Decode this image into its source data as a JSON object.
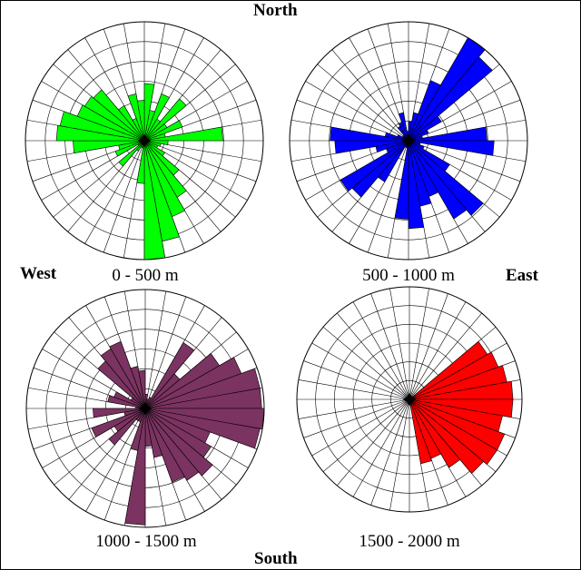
{
  "compass": {
    "north": "North",
    "south": "South",
    "west": "West",
    "east": "East"
  },
  "chart_data": [
    {
      "type": "polar-bar",
      "caption": "0 - 500 m",
      "color": "#00ff00",
      "sectors": 36,
      "rings": 6,
      "values": [
        0.48,
        0.26,
        0.42,
        0.21,
        0.46,
        0.22,
        0.34,
        0.18,
        0.66,
        0.2,
        0.14,
        0.12,
        0.2,
        0.38,
        0.55,
        0.68,
        0.86,
        1.0,
        0.36,
        0.06,
        0.06,
        0.1,
        0.28,
        0.06,
        0.26,
        0.22,
        0.6,
        0.74,
        0.72,
        0.6,
        0.58,
        0.56,
        0.34,
        0.2,
        0.4,
        0.34
      ]
    },
    {
      "type": "polar-bar",
      "caption": "500 - 1000 m",
      "color": "#0000ff",
      "sectors": 36,
      "rings": 6,
      "values": [
        0.16,
        0.24,
        0.54,
        1.0,
        0.92,
        0.32,
        0.18,
        0.12,
        0.66,
        0.72,
        0.1,
        0.14,
        0.4,
        0.82,
        0.76,
        0.5,
        0.56,
        0.74,
        0.66,
        0.06,
        0.06,
        0.4,
        0.62,
        0.66,
        0.2,
        0.28,
        0.62,
        0.66,
        0.2,
        0.1,
        0.06,
        0.06,
        0.14,
        0.16,
        0.24,
        0.08
      ]
    },
    {
      "type": "polar-bar",
      "caption": "1000 - 1500 m",
      "color": "#7b3361",
      "sectors": 36,
      "rings": 6,
      "values": [
        0.12,
        0.08,
        0.1,
        0.64,
        0.38,
        0.72,
        0.86,
        0.98,
        0.98,
        1.0,
        0.98,
        0.58,
        0.64,
        0.74,
        0.7,
        0.66,
        0.42,
        0.32,
        0.98,
        0.36,
        0.12,
        0.12,
        0.4,
        0.3,
        0.48,
        0.18,
        0.44,
        0.08,
        0.32,
        0.28,
        0.14,
        0.52,
        0.58,
        0.6,
        0.36,
        0.32
      ]
    },
    {
      "type": "polar-bar",
      "caption": "1500 - 2000 m",
      "color": "#ff0000",
      "sectors": 36,
      "rings": 6,
      "values": [
        0.02,
        0.02,
        0.02,
        0.02,
        0.02,
        0.8,
        0.84,
        0.88,
        0.92,
        0.92,
        0.84,
        0.9,
        0.9,
        0.86,
        0.7,
        0.56,
        0.58,
        0.02,
        0.02,
        0.02,
        0.02,
        0.02,
        0.02,
        0.02,
        0.02,
        0.02,
        0.02,
        0.02,
        0.02,
        0.02,
        0.02,
        0.02,
        0.02,
        0.02,
        0.02,
        0.02
      ]
    }
  ]
}
